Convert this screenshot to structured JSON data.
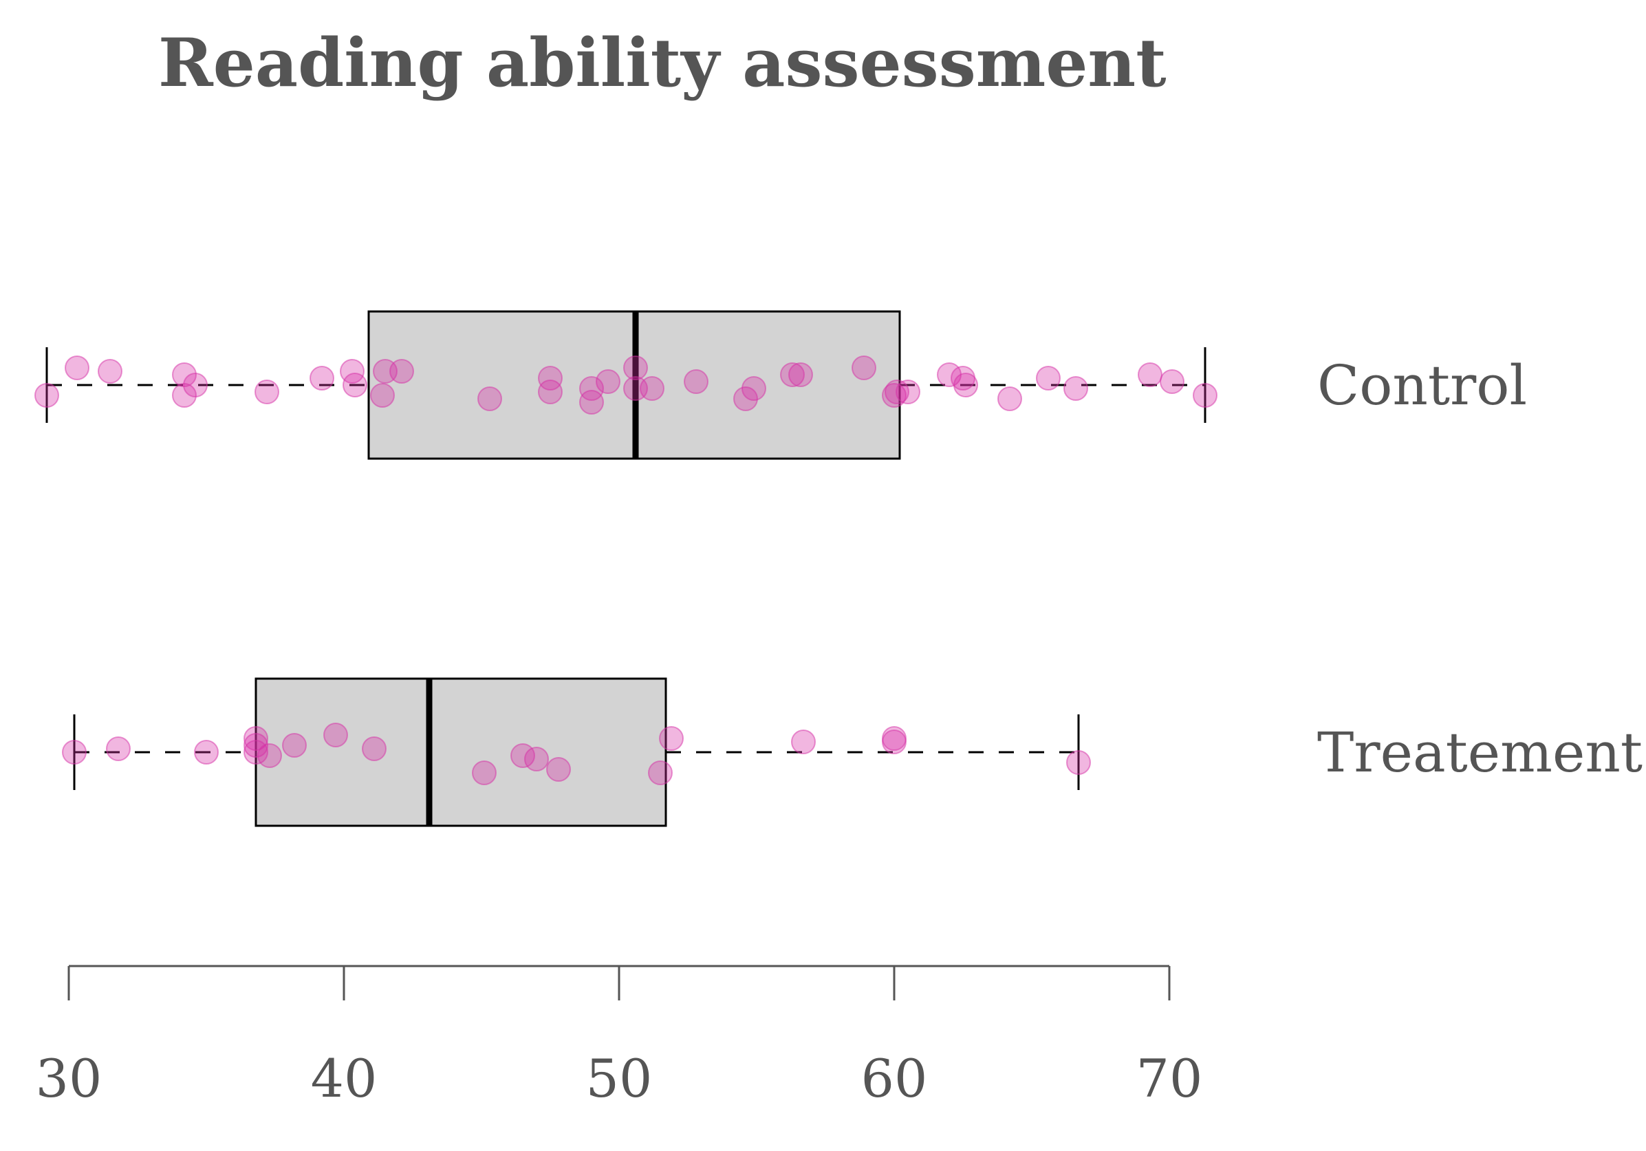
{
  "chart_data": {
    "type": "boxplot",
    "title": "Reading ability assessment",
    "xlabel": "",
    "ylabel": "",
    "xlim": [
      29,
      71
    ],
    "x_ticks": [
      30,
      40,
      50,
      60,
      70
    ],
    "grid": false,
    "colors": {
      "title": "#555555",
      "axis": "#555555",
      "box_fill": "#d3d3d3",
      "box_edge": "#000000",
      "points": "#d62fa6"
    },
    "groups": [
      {
        "name": "Control",
        "whisker_low": 29.2,
        "q1": 40.9,
        "median": 50.6,
        "q3": 60.2,
        "whisker_high": 71.3,
        "points": [
          {
            "x": 29.2,
            "jitter": 0.03
          },
          {
            "x": 30.3,
            "jitter": -0.05
          },
          {
            "x": 31.5,
            "jitter": -0.04
          },
          {
            "x": 34.2,
            "jitter": -0.03
          },
          {
            "x": 34.2,
            "jitter": 0.03
          },
          {
            "x": 34.6,
            "jitter": 0.0
          },
          {
            "x": 37.2,
            "jitter": 0.02
          },
          {
            "x": 39.2,
            "jitter": -0.02
          },
          {
            "x": 40.3,
            "jitter": -0.04
          },
          {
            "x": 40.4,
            "jitter": 0.0
          },
          {
            "x": 41.4,
            "jitter": 0.03
          },
          {
            "x": 41.5,
            "jitter": -0.04
          },
          {
            "x": 42.1,
            "jitter": -0.04
          },
          {
            "x": 45.3,
            "jitter": 0.04
          },
          {
            "x": 47.5,
            "jitter": -0.02
          },
          {
            "x": 47.5,
            "jitter": 0.02
          },
          {
            "x": 49.0,
            "jitter": 0.01
          },
          {
            "x": 49.0,
            "jitter": 0.05
          },
          {
            "x": 49.6,
            "jitter": -0.01
          },
          {
            "x": 50.6,
            "jitter": -0.05
          },
          {
            "x": 50.6,
            "jitter": 0.01
          },
          {
            "x": 51.2,
            "jitter": 0.01
          },
          {
            "x": 52.8,
            "jitter": -0.01
          },
          {
            "x": 54.6,
            "jitter": 0.04
          },
          {
            "x": 54.9,
            "jitter": 0.01
          },
          {
            "x": 56.3,
            "jitter": -0.03
          },
          {
            "x": 56.6,
            "jitter": -0.03
          },
          {
            "x": 58.9,
            "jitter": -0.05
          },
          {
            "x": 60.0,
            "jitter": 0.03
          },
          {
            "x": 60.1,
            "jitter": 0.02
          },
          {
            "x": 60.5,
            "jitter": 0.02
          },
          {
            "x": 62.0,
            "jitter": -0.03
          },
          {
            "x": 62.5,
            "jitter": -0.02
          },
          {
            "x": 62.6,
            "jitter": 0.0
          },
          {
            "x": 64.2,
            "jitter": 0.04
          },
          {
            "x": 65.6,
            "jitter": -0.02
          },
          {
            "x": 66.6,
            "jitter": 0.01
          },
          {
            "x": 69.3,
            "jitter": -0.03
          },
          {
            "x": 70.1,
            "jitter": -0.01
          },
          {
            "x": 71.3,
            "jitter": 0.03
          }
        ]
      },
      {
        "name": "Treatement",
        "whisker_low": 30.2,
        "q1": 36.8,
        "median": 43.1,
        "q3": 51.7,
        "whisker_high": 66.7,
        "points": [
          {
            "x": 30.2,
            "jitter": 0.0
          },
          {
            "x": 31.8,
            "jitter": -0.01
          },
          {
            "x": 35.0,
            "jitter": 0.0
          },
          {
            "x": 36.8,
            "jitter": -0.04
          },
          {
            "x": 36.8,
            "jitter": -0.02
          },
          {
            "x": 36.8,
            "jitter": 0.0
          },
          {
            "x": 37.3,
            "jitter": 0.01
          },
          {
            "x": 38.2,
            "jitter": -0.02
          },
          {
            "x": 39.7,
            "jitter": -0.05
          },
          {
            "x": 41.1,
            "jitter": -0.01
          },
          {
            "x": 45.1,
            "jitter": 0.06
          },
          {
            "x": 46.5,
            "jitter": 0.01
          },
          {
            "x": 47.0,
            "jitter": 0.02
          },
          {
            "x": 47.8,
            "jitter": 0.05
          },
          {
            "x": 51.5,
            "jitter": 0.06
          },
          {
            "x": 51.9,
            "jitter": -0.04
          },
          {
            "x": 56.7,
            "jitter": -0.03
          },
          {
            "x": 60.0,
            "jitter": -0.04
          },
          {
            "x": 60.0,
            "jitter": -0.03
          },
          {
            "x": 66.7,
            "jitter": 0.03
          }
        ]
      }
    ]
  }
}
